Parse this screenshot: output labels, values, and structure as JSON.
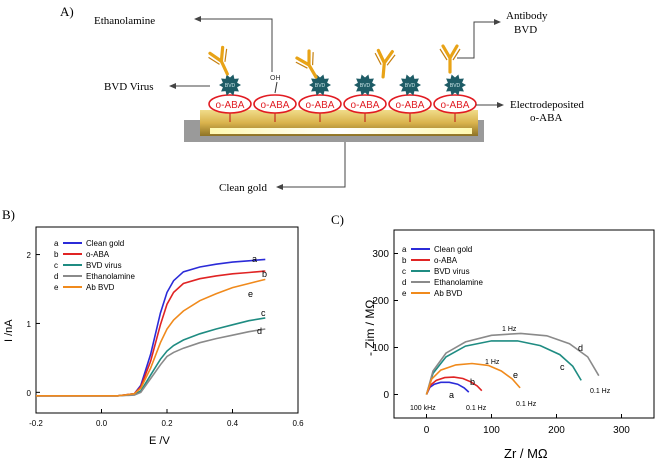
{
  "panel_a": {
    "label": "A)",
    "ethanolamine": "Ethanolamine",
    "oh": "OH",
    "bvd_virus": "BVD Virus",
    "antibody": "Antibody",
    "antibody_bvd": "BVD",
    "electro_line1": "Electrodeposited",
    "electro_line2": "o-ABA",
    "clean_gold": "Clean gold",
    "oaba_label": "o-ABA",
    "virus_tag": "BVD",
    "colors": {
      "gold": "#d4b04a",
      "ellipse": "#e11b22",
      "virus": "#1e5c66",
      "antibody": "#e8a317",
      "glow": "#fff77a"
    }
  },
  "panel_b": {
    "label": "B)",
    "xlabel": "E /V",
    "ylabel": "I /nA",
    "legend": [
      {
        "letter": "a",
        "name": "Clean gold",
        "color": "#2b2bd8"
      },
      {
        "letter": "b",
        "name": "o-ABA",
        "color": "#e02424"
      },
      {
        "letter": "c",
        "name": "BVD virus",
        "color": "#1f8c82"
      },
      {
        "letter": "d",
        "name": "Ethanolamine",
        "color": "#8a8a8a"
      },
      {
        "letter": "e",
        "name": "Ab BVD",
        "color": "#f08a1c"
      }
    ],
    "xticks": [
      "-0.2",
      "0.0",
      "0.2",
      "0.4",
      "0.6"
    ],
    "yticks": [
      "0",
      "1",
      "2"
    ],
    "curve_labels": [
      "a",
      "b",
      "e",
      "c",
      "d"
    ]
  },
  "panel_c": {
    "label": "C)",
    "xlabel": "Zr / MΩ",
    "ylabel": "- Zim / MΩ",
    "legend": [
      {
        "letter": "a",
        "name": "Clean gold",
        "color": "#2b2bd8"
      },
      {
        "letter": "b",
        "name": "o-ABA",
        "color": "#e02424"
      },
      {
        "letter": "c",
        "name": "BVD virus",
        "color": "#1f8c82"
      },
      {
        "letter": "d",
        "name": "Ethanolamine",
        "color": "#8a8a8a"
      },
      {
        "letter": "e",
        "name": "Ab BVD",
        "color": "#f08a1c"
      }
    ],
    "xticks": [
      "0",
      "100",
      "200",
      "300"
    ],
    "yticks": [
      "0",
      "100",
      "200",
      "300"
    ],
    "annotations": {
      "hz1_top": "1 Hz",
      "hz1_mid": "1 Hz",
      "hz01_d": "0.1 Hz",
      "hz01_e": "0.1 Hz",
      "hz01_b": "0.1 Hz",
      "khz100": "100 kHz"
    },
    "curve_labels": [
      "a",
      "b",
      "e",
      "c",
      "d"
    ]
  },
  "chart_data": [
    {
      "type": "line",
      "panel": "B",
      "xlabel": "E /V",
      "ylabel": "I /nA",
      "xlim": [
        -0.2,
        0.6
      ],
      "ylim": [
        -0.3,
        2.4
      ],
      "grid": false,
      "legend_position": "top-left",
      "series": [
        {
          "name": "Clean gold",
          "x": [
            -0.2,
            -0.1,
            0.0,
            0.05,
            0.1,
            0.12,
            0.15,
            0.18,
            0.2,
            0.22,
            0.25,
            0.3,
            0.35,
            0.4,
            0.45,
            0.5
          ],
          "y": [
            -0.05,
            -0.05,
            -0.05,
            -0.05,
            -0.02,
            0.1,
            0.55,
            1.15,
            1.45,
            1.62,
            1.75,
            1.82,
            1.86,
            1.89,
            1.91,
            1.93
          ]
        },
        {
          "name": "o-ABA",
          "x": [
            -0.2,
            -0.1,
            0.0,
            0.05,
            0.1,
            0.12,
            0.15,
            0.18,
            0.2,
            0.22,
            0.25,
            0.3,
            0.35,
            0.4,
            0.45,
            0.5
          ],
          "y": [
            -0.05,
            -0.05,
            -0.05,
            -0.05,
            -0.02,
            0.08,
            0.45,
            0.98,
            1.28,
            1.45,
            1.58,
            1.65,
            1.69,
            1.72,
            1.74,
            1.76
          ]
        },
        {
          "name": "BVD virus",
          "x": [
            -0.2,
            -0.1,
            0.0,
            0.05,
            0.1,
            0.12,
            0.15,
            0.18,
            0.2,
            0.22,
            0.25,
            0.3,
            0.35,
            0.4,
            0.45,
            0.5
          ],
          "y": [
            -0.05,
            -0.05,
            -0.05,
            -0.05,
            -0.03,
            0.02,
            0.25,
            0.48,
            0.6,
            0.68,
            0.76,
            0.85,
            0.92,
            0.98,
            1.04,
            1.08
          ]
        },
        {
          "name": "Ethanolamine",
          "x": [
            -0.2,
            -0.1,
            0.0,
            0.05,
            0.1,
            0.12,
            0.15,
            0.18,
            0.2,
            0.22,
            0.25,
            0.3,
            0.35,
            0.4,
            0.45,
            0.5
          ],
          "y": [
            -0.05,
            -0.05,
            -0.05,
            -0.05,
            -0.04,
            0.0,
            0.2,
            0.4,
            0.52,
            0.58,
            0.64,
            0.72,
            0.78,
            0.83,
            0.88,
            0.92
          ]
        },
        {
          "name": "Ab BVD",
          "x": [
            -0.2,
            -0.1,
            0.0,
            0.05,
            0.1,
            0.12,
            0.15,
            0.18,
            0.2,
            0.22,
            0.25,
            0.3,
            0.35,
            0.4,
            0.45,
            0.5
          ],
          "y": [
            -0.05,
            -0.05,
            -0.05,
            -0.05,
            -0.02,
            0.06,
            0.35,
            0.72,
            0.92,
            1.05,
            1.18,
            1.33,
            1.43,
            1.52,
            1.58,
            1.64
          ]
        }
      ]
    },
    {
      "type": "line",
      "panel": "C",
      "xlabel": "Zr / MΩ",
      "ylabel": "- Zim / MΩ",
      "xlim": [
        -50,
        350
      ],
      "ylim": [
        -50,
        350
      ],
      "grid": false,
      "legend_position": "top-left",
      "series": [
        {
          "name": "Clean gold",
          "x": [
            0,
            5,
            12,
            22,
            35,
            48,
            58,
            65
          ],
          "y": [
            0,
            15,
            22,
            26,
            26,
            22,
            14,
            5
          ]
        },
        {
          "name": "o-ABA",
          "x": [
            0,
            6,
            15,
            28,
            42,
            56,
            68,
            78,
            85
          ],
          "y": [
            0,
            20,
            30,
            36,
            37,
            34,
            27,
            18,
            8
          ]
        },
        {
          "name": "BVD virus",
          "x": [
            0,
            10,
            30,
            60,
            100,
            140,
            175,
            205,
            225,
            238
          ],
          "y": [
            0,
            45,
            80,
            103,
            114,
            114,
            104,
            85,
            60,
            30
          ]
        },
        {
          "name": "Ethanolamine",
          "x": [
            0,
            10,
            30,
            60,
            100,
            145,
            185,
            220,
            248,
            265
          ],
          "y": [
            0,
            50,
            88,
            112,
            126,
            130,
            125,
            108,
            80,
            40
          ]
        },
        {
          "name": "Ab BVD",
          "x": [
            0,
            8,
            22,
            45,
            70,
            95,
            115,
            132,
            144
          ],
          "y": [
            0,
            33,
            52,
            63,
            66,
            62,
            50,
            33,
            14
          ]
        }
      ]
    }
  ]
}
